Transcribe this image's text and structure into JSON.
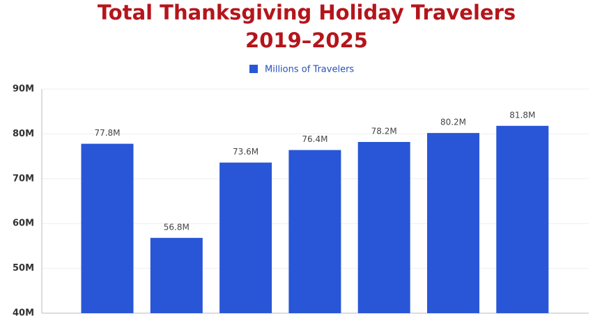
{
  "chart_data": {
    "type": "bar",
    "title": [
      "Total Thanksgiving Holiday Travelers",
      "2019–2025"
    ],
    "categories": [
      null,
      null,
      null,
      null,
      null,
      null,
      null
    ],
    "series": [
      {
        "name": "Millions of Travelers",
        "color": "#2856d6",
        "values": [
          77.8,
          56.8,
          73.6,
          76.4,
          78.2,
          80.2,
          81.8
        ],
        "value_labels": [
          "77.8M",
          "56.8M",
          "73.6M",
          "76.4M",
          "78.2M",
          "80.2M",
          "81.8M"
        ]
      }
    ],
    "ylim": [
      40,
      90
    ],
    "yticks": [
      {
        "value": 40,
        "label": "40M"
      },
      {
        "value": 50,
        "label": "50M"
      },
      {
        "value": 60,
        "label": "60M"
      },
      {
        "value": 70,
        "label": "70M"
      },
      {
        "value": 80,
        "label": "80M"
      },
      {
        "value": 90,
        "label": "90M"
      }
    ],
    "grid": true,
    "legend": "top"
  }
}
